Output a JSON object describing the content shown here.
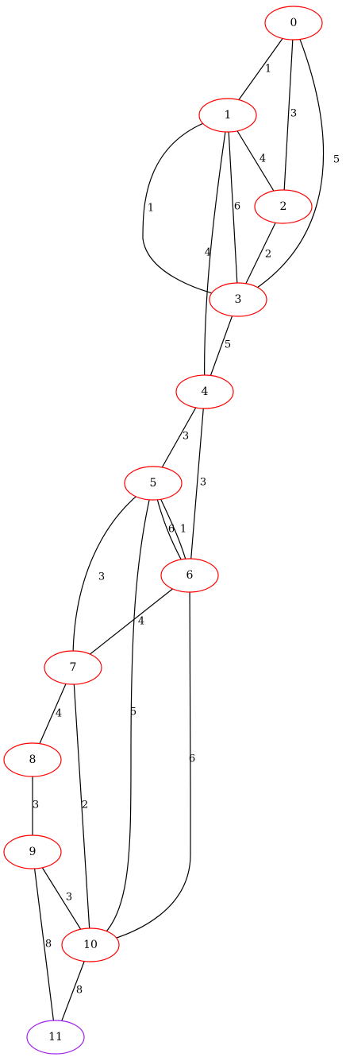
{
  "graph": {
    "type": "undirected-weighted",
    "colors": {
      "node_default": "#ff0000",
      "node_highlight": "#a020f0",
      "edge": "#000000"
    },
    "nodes": [
      {
        "id": "0",
        "label": "0",
        "highlight": false
      },
      {
        "id": "1",
        "label": "1",
        "highlight": false
      },
      {
        "id": "2",
        "label": "2",
        "highlight": false
      },
      {
        "id": "3",
        "label": "3",
        "highlight": false
      },
      {
        "id": "4",
        "label": "4",
        "highlight": false
      },
      {
        "id": "5",
        "label": "5",
        "highlight": false
      },
      {
        "id": "6",
        "label": "6",
        "highlight": false
      },
      {
        "id": "7",
        "label": "7",
        "highlight": false
      },
      {
        "id": "8",
        "label": "8",
        "highlight": false
      },
      {
        "id": "9",
        "label": "9",
        "highlight": false
      },
      {
        "id": "10",
        "label": "10",
        "highlight": false
      },
      {
        "id": "11",
        "label": "11",
        "highlight": true
      }
    ],
    "edges": [
      {
        "from": "0",
        "to": "1",
        "weight": "1"
      },
      {
        "from": "0",
        "to": "2",
        "weight": "3"
      },
      {
        "from": "0",
        "to": "3",
        "weight": "5"
      },
      {
        "from": "1",
        "to": "2",
        "weight": "4"
      },
      {
        "from": "1",
        "to": "3",
        "weight": "1"
      },
      {
        "from": "1",
        "to": "3",
        "weight": "6"
      },
      {
        "from": "1",
        "to": "4",
        "weight": "4"
      },
      {
        "from": "2",
        "to": "3",
        "weight": "2"
      },
      {
        "from": "3",
        "to": "4",
        "weight": "5"
      },
      {
        "from": "4",
        "to": "5",
        "weight": "3"
      },
      {
        "from": "4",
        "to": "6",
        "weight": "3"
      },
      {
        "from": "5",
        "to": "6",
        "weight": "6"
      },
      {
        "from": "5",
        "to": "6",
        "weight": "1"
      },
      {
        "from": "5",
        "to": "7",
        "weight": "3"
      },
      {
        "from": "5",
        "to": "10",
        "weight": "5"
      },
      {
        "from": "6",
        "to": "7",
        "weight": "4"
      },
      {
        "from": "6",
        "to": "10",
        "weight": "6"
      },
      {
        "from": "7",
        "to": "8",
        "weight": "4"
      },
      {
        "from": "7",
        "to": "10",
        "weight": "2"
      },
      {
        "from": "8",
        "to": "9",
        "weight": "3"
      },
      {
        "from": "9",
        "to": "10",
        "weight": "3"
      },
      {
        "from": "9",
        "to": "11",
        "weight": "8"
      },
      {
        "from": "10",
        "to": "11",
        "weight": "8"
      }
    ]
  }
}
